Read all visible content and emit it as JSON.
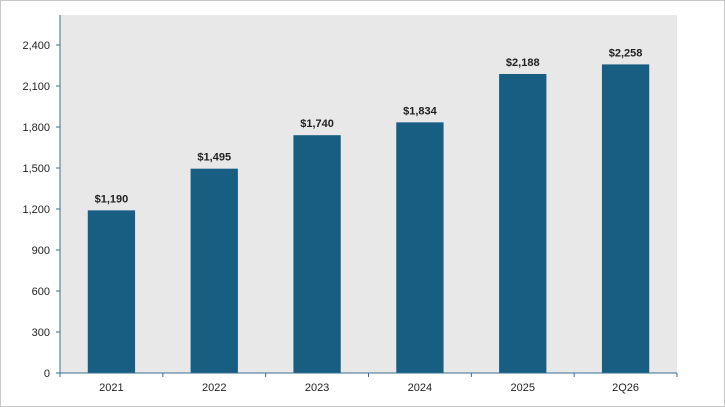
{
  "chart_data": {
    "type": "bar",
    "categories": [
      "2021",
      "2022",
      "2023",
      "2024",
      "2025",
      "2Q26"
    ],
    "values": [
      1190,
      1495,
      1740,
      1834,
      2188,
      2258
    ],
    "data_labels": [
      "$1,190",
      "$1,495",
      "$1,740",
      "$1,834",
      "$2,188",
      "$2,258"
    ],
    "title": "",
    "xlabel": "",
    "ylabel": "",
    "ylim": [
      0,
      2400
    ],
    "yticks": [
      0,
      300,
      600,
      900,
      1200,
      1500,
      1800,
      2100,
      2400
    ],
    "ytick_labels": [
      "0",
      "300",
      "600",
      "900",
      "1,200",
      "1,500",
      "1,800",
      "2,100",
      "2,400"
    ],
    "grid": false,
    "legend": "none",
    "colors": {
      "bar": "#175e82",
      "plot_background": "#e8e8e8",
      "axis": "#3a6f94"
    }
  }
}
